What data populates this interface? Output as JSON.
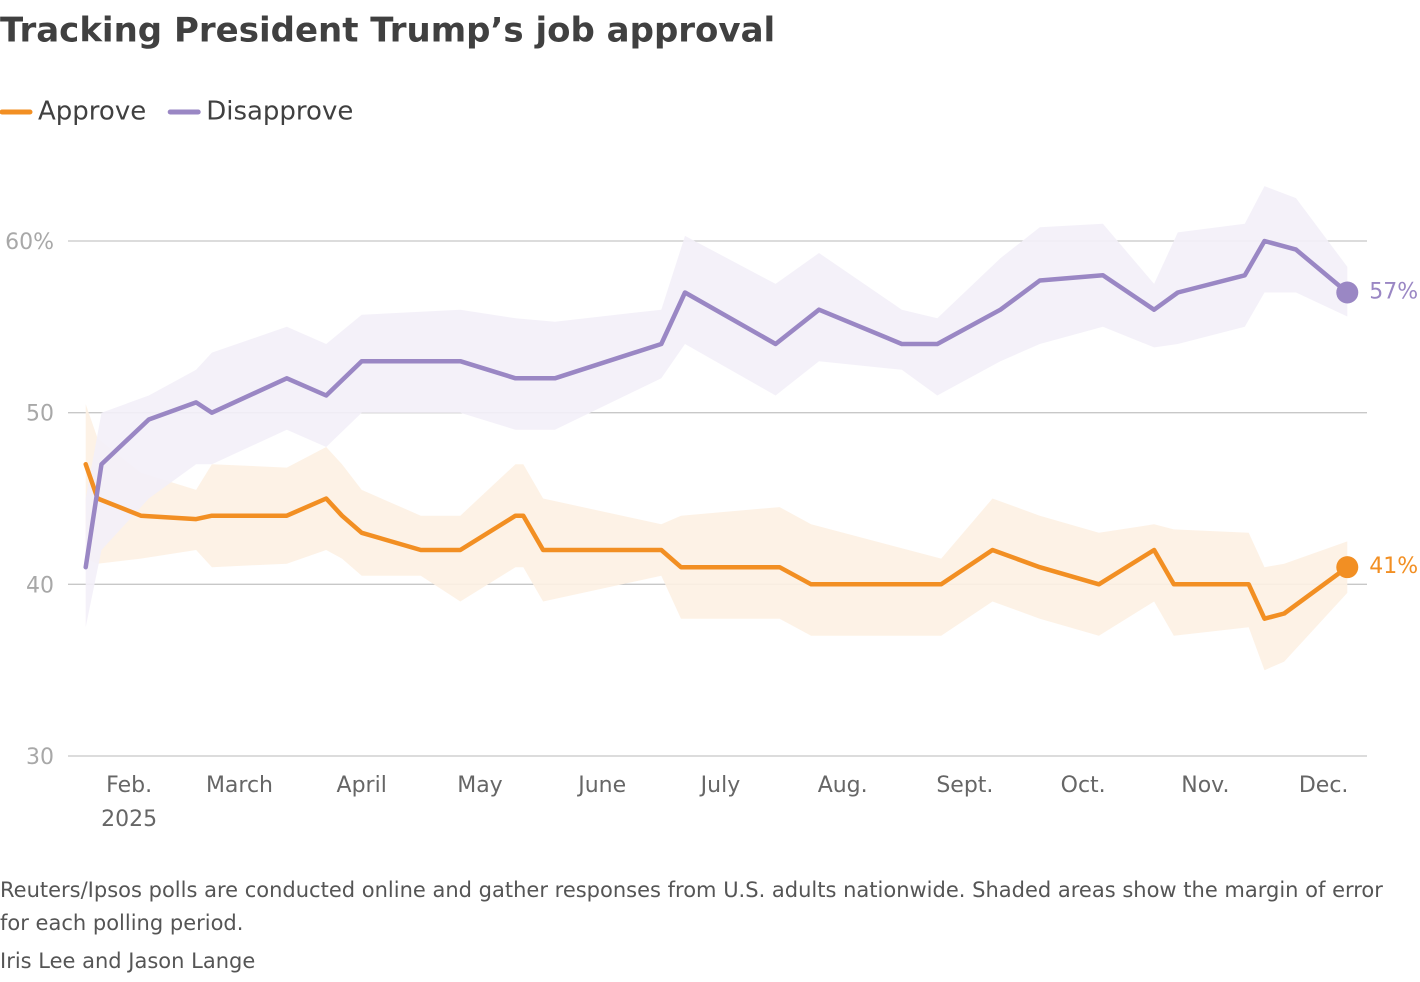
{
  "chart_data": {
    "type": "line",
    "title": "Tracking President Trump’s job approval",
    "x_annotation": "2025",
    "note": "Reuters/Ipsos polls are conducted online and gather responses from U.S. adults nationwide. Shaded areas show the margin of error for each polling period.",
    "byline": "Iris Lee and Jason Lange",
    "xlim": [
      16.5,
      346
    ],
    "xticks": [
      {
        "value": 32,
        "label": "Feb."
      },
      {
        "value": 60,
        "label": "March"
      },
      {
        "value": 91,
        "label": "April"
      },
      {
        "value": 121,
        "label": "May"
      },
      {
        "value": 152,
        "label": "June"
      },
      {
        "value": 182,
        "label": "July"
      },
      {
        "value": 213,
        "label": "Aug."
      },
      {
        "value": 244,
        "label": "Sept."
      },
      {
        "value": 274,
        "label": "Oct."
      },
      {
        "value": 305,
        "label": "Nov."
      },
      {
        "value": 335,
        "label": "Dec."
      }
    ],
    "ylim": [
      30,
      63
    ],
    "yticks": [
      30,
      40,
      50,
      {
        "value": 60,
        "label": "60%"
      }
    ],
    "grid": true,
    "series": [
      {
        "name": "Approve",
        "color": "#f28f23",
        "band_color": "#fdf1e3",
        "x": [
          21,
          24,
          35,
          49,
          53,
          72,
          82,
          86,
          91,
          106,
          116,
          130,
          132,
          137,
          167,
          172,
          197,
          205,
          238,
          251,
          263,
          278,
          292,
          297,
          316,
          320,
          325,
          341
        ],
        "values": [
          47,
          45,
          44,
          43.8,
          44,
          44,
          45,
          44,
          43,
          42,
          42,
          44,
          44,
          42,
          42,
          41,
          41,
          40,
          40,
          42,
          41,
          40,
          42,
          40,
          40,
          38,
          38.3,
          41
        ],
        "low": [
          41.5,
          41.2,
          41.5,
          42,
          41,
          41.2,
          42,
          41.5,
          40.5,
          40.5,
          39,
          41,
          41,
          39,
          40.5,
          38,
          38,
          37,
          37,
          39,
          38,
          37,
          39,
          37,
          37.5,
          35,
          35.5,
          39.5
        ],
        "high": [
          50.5,
          48.5,
          46.5,
          45.5,
          47,
          46.8,
          48,
          47,
          45.5,
          44,
          44,
          47,
          47,
          45,
          43.5,
          44,
          44.5,
          43.5,
          41.5,
          45,
          44,
          43,
          43.5,
          43.2,
          43,
          41,
          41.2,
          42.5
        ],
        "value_labels": [
          null,
          null,
          null,
          null,
          null,
          null,
          null,
          null,
          null,
          null,
          null,
          null,
          null,
          null,
          null,
          null,
          null,
          null,
          null,
          null,
          null,
          null,
          null,
          null,
          null,
          null,
          null,
          "41%"
        ]
      },
      {
        "name": "Disapprove",
        "color": "#9a87c4",
        "band_color": "#f3f0f8",
        "x": [
          21,
          25,
          37,
          49,
          53,
          72,
          82,
          91,
          116,
          130,
          140,
          167,
          173,
          196,
          207,
          228,
          237,
          253,
          263,
          279,
          292,
          298,
          315,
          320,
          328,
          341
        ],
        "values": [
          41,
          47,
          49.6,
          50.6,
          50,
          52,
          51,
          53,
          53,
          52,
          52,
          54,
          57,
          54,
          56,
          54,
          54,
          56,
          57.7,
          58,
          56,
          57,
          58,
          60,
          59.5,
          57
        ],
        "low": [
          37.5,
          42,
          45,
          47,
          47,
          49,
          48,
          50,
          50,
          49,
          49,
          52,
          54,
          51,
          53,
          52.5,
          51,
          53,
          54,
          55,
          53.8,
          54,
          55,
          57,
          57,
          55.6
        ],
        "high": [
          45,
          50,
          51,
          52.5,
          53.5,
          55,
          54,
          55.7,
          56,
          55.5,
          55.3,
          56,
          60.3,
          57.5,
          59.3,
          56,
          55.5,
          59,
          60.8,
          61,
          57.5,
          60.5,
          61,
          63.2,
          62.5,
          58.5
        ],
        "value_labels": [
          null,
          null,
          null,
          null,
          null,
          null,
          null,
          null,
          null,
          null,
          null,
          null,
          null,
          null,
          null,
          null,
          null,
          null,
          null,
          null,
          null,
          null,
          null,
          null,
          null,
          "57%"
        ]
      }
    ]
  }
}
